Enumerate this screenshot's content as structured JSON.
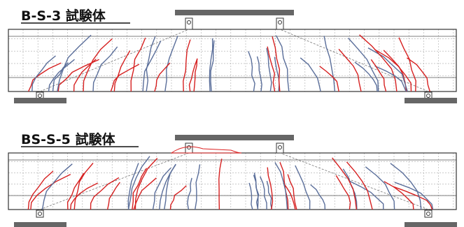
{
  "beams": [
    {
      "title": "B-S-3 試験体"
    },
    {
      "title": "BS-S-5 試験体"
    }
  ]
}
